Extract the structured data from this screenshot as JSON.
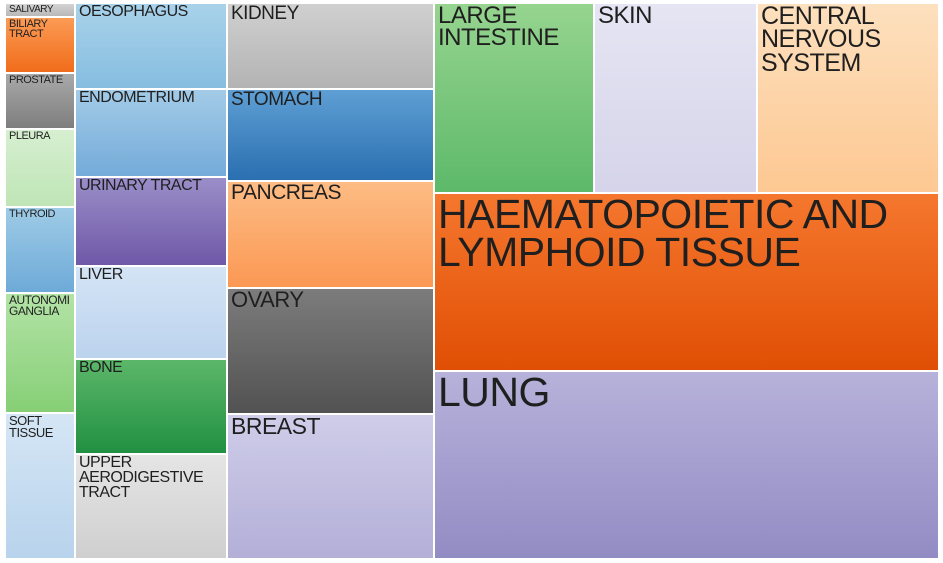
{
  "chart_data": {
    "type": "treemap",
    "title": "",
    "items": [
      {
        "label": "SALIVARY",
        "color_top": "#d3d3d3",
        "color_bottom": "#b8b8b8"
      },
      {
        "label": "BILIARY TRACT",
        "color_top": "#fc9b55",
        "color_bottom": "#f06c1a"
      },
      {
        "label": "PROSTATE",
        "color_top": "#a9a9a9",
        "color_bottom": "#7e7e7e"
      },
      {
        "label": "PLEURA",
        "color_top": "#d6efd0",
        "color_bottom": "#bfe5b6"
      },
      {
        "label": "THYROID",
        "color_top": "#9ecbe6",
        "color_bottom": "#6eaad8"
      },
      {
        "label": "AUTONOMIC GANGLIA",
        "display": "AUTONOMI GANGLIA",
        "color_top": "#b3e3a6",
        "color_bottom": "#86cf76"
      },
      {
        "label": "SOFT TISSUE",
        "color_top": "#d5e6f5",
        "color_bottom": "#b8d3ec"
      },
      {
        "label": "OESOPHAGUS",
        "color_top": "#a9d2ea",
        "color_bottom": "#86bde0"
      },
      {
        "label": "ENDOMETRIUM",
        "color_top": "#a3cbe7",
        "color_bottom": "#74abd9"
      },
      {
        "label": "URINARY TRACT",
        "color_top": "#9a8ec8",
        "color_bottom": "#6f58a8"
      },
      {
        "label": "LIVER",
        "color_top": "#d4e4f5",
        "color_bottom": "#bcd3ee"
      },
      {
        "label": "BONE",
        "color_top": "#5cb769",
        "color_bottom": "#219042"
      },
      {
        "label": "UPPER AERODIGESTIVE TRACT",
        "color_top": "#e5e5e5",
        "color_bottom": "#cfcfcf"
      },
      {
        "label": "KIDNEY",
        "color_top": "#d0d0d0",
        "color_bottom": "#b3b3b3"
      },
      {
        "label": "STOMACH",
        "color_top": "#5e9fd4",
        "color_bottom": "#2a6fb0"
      },
      {
        "label": "PANCREAS",
        "color_top": "#fdbc84",
        "color_bottom": "#fb9854"
      },
      {
        "label": "OVARY",
        "color_top": "#7c7c7c",
        "color_bottom": "#525252"
      },
      {
        "label": "BREAST",
        "color_top": "#cfcde9",
        "color_bottom": "#b3afd8"
      },
      {
        "label": "LARGE INTESTINE",
        "color_top": "#96d48f",
        "color_bottom": "#5db96a"
      },
      {
        "label": "SKIN",
        "color_top": "#e6e5f3",
        "color_bottom": "#d5d4ea"
      },
      {
        "label": "CENTRAL NERVOUS SYSTEM",
        "color_top": "#fde0be",
        "color_bottom": "#fdc892"
      },
      {
        "label": "HAEMATOPOIETIC AND LYMPHOID TISSUE",
        "color_top": "#f5772e",
        "color_bottom": "#e04f04"
      },
      {
        "label": "LUNG",
        "color_top": "#b7b2da",
        "color_bottom": "#928cc4"
      }
    ]
  }
}
